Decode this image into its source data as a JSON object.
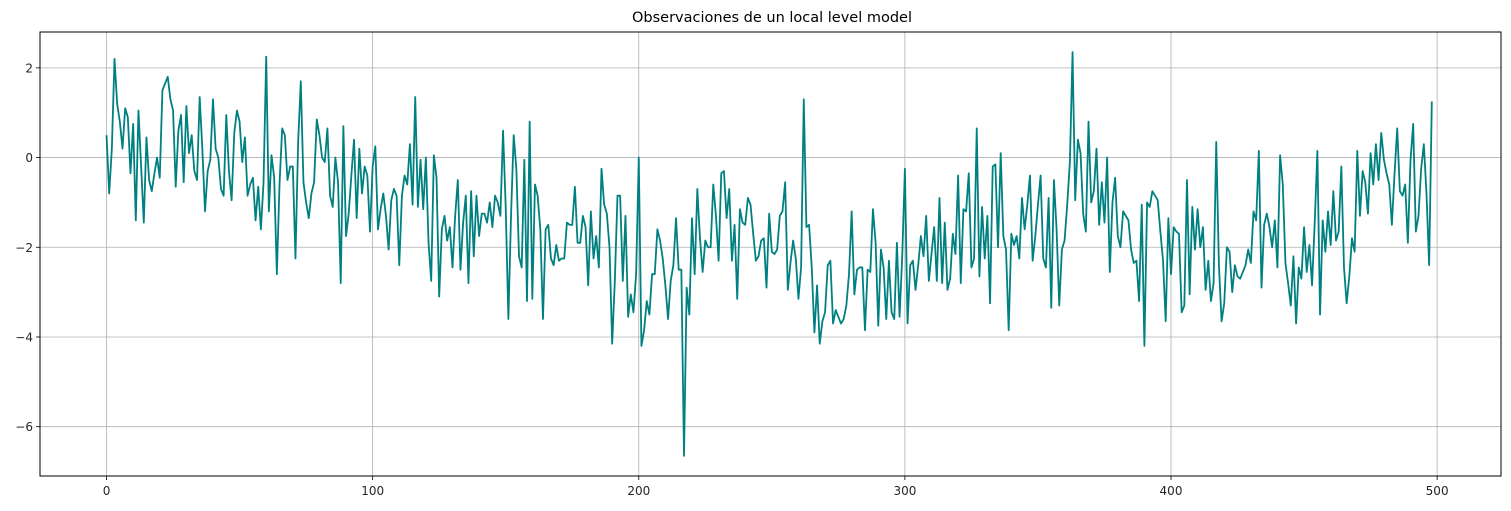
{
  "chart_data": {
    "type": "line",
    "title": "Observaciones de un local level model",
    "xlabel": "",
    "ylabel": "",
    "xlim": [
      -25,
      524
    ],
    "ylim": [
      -7.1,
      2.8
    ],
    "grid": true,
    "x_ticks": [
      0,
      100,
      200,
      300,
      400,
      500
    ],
    "y_ticks": [
      -6,
      -4,
      -2,
      0,
      2
    ],
    "colors": {
      "line": "#008080",
      "grid": "#b0b0b0",
      "axis": "#000000"
    },
    "series": [
      {
        "x_start": 0,
        "x_step": 1,
        "values": [
          0.5,
          -0.8,
          0.2,
          2.2,
          1.2,
          0.8,
          0.2,
          1.1,
          0.9,
          -0.35,
          0.75,
          -1.4,
          1.05,
          -0.2,
          -1.45,
          0.45,
          -0.5,
          -0.75,
          -0.35,
          0.0,
          -0.45,
          1.5,
          1.65,
          1.8,
          1.3,
          1.05,
          -0.65,
          0.6,
          0.95,
          -0.55,
          1.15,
          0.1,
          0.5,
          -0.3,
          -0.5,
          1.35,
          0.2,
          -1.2,
          -0.3,
          -0.05,
          1.3,
          0.2,
          0.0,
          -0.7,
          -0.85,
          0.95,
          -0.3,
          -0.95,
          0.55,
          1.05,
          0.8,
          -0.1,
          0.45,
          -0.85,
          -0.6,
          -0.45,
          -1.4,
          -0.65,
          -1.6,
          -0.55,
          2.25,
          -1.2,
          0.05,
          -0.45,
          -2.6,
          -0.6,
          0.65,
          0.5,
          -0.5,
          -0.2,
          -0.2,
          -2.25,
          0.35,
          1.7,
          -0.55,
          -1.0,
          -1.35,
          -0.8,
          -0.55,
          0.85,
          0.5,
          0.0,
          -0.1,
          0.65,
          -0.85,
          -1.1,
          0.0,
          -0.55,
          -2.8,
          0.7,
          -1.75,
          -1.25,
          -0.4,
          0.4,
          -1.35,
          0.2,
          -0.8,
          -0.2,
          -0.4,
          -1.65,
          -0.2,
          0.25,
          -1.6,
          -1.15,
          -0.8,
          -1.3,
          -2.05,
          -0.95,
          -0.7,
          -0.85,
          -2.4,
          -0.85,
          -0.4,
          -0.6,
          0.3,
          -1.05,
          1.35,
          -1.1,
          -0.05,
          -1.15,
          0.0,
          -1.9,
          -2.75,
          0.05,
          -0.45,
          -3.1,
          -1.6,
          -1.3,
          -1.85,
          -1.55,
          -2.45,
          -1.3,
          -0.5,
          -2.5,
          -1.45,
          -0.85,
          -2.8,
          -0.75,
          -2.2,
          -0.85,
          -1.75,
          -1.25,
          -1.25,
          -1.45,
          -1.0,
          -1.55,
          -0.85,
          -1.0,
          -1.3,
          0.6,
          -1.1,
          -3.6,
          -1.3,
          0.5,
          -0.25,
          -2.2,
          -2.45,
          -0.05,
          -3.2,
          0.8,
          -3.15,
          -0.6,
          -0.85,
          -1.6,
          -3.6,
          -1.6,
          -1.5,
          -2.25,
          -2.4,
          -1.95,
          -2.3,
          -2.25,
          -2.25,
          -1.45,
          -1.5,
          -1.5,
          -0.65,
          -1.9,
          -1.9,
          -1.3,
          -1.55,
          -2.85,
          -1.2,
          -2.25,
          -1.75,
          -2.45,
          -0.25,
          -1.05,
          -1.25,
          -2.0,
          -4.15,
          -2.75,
          -0.85,
          -0.85,
          -2.75,
          -1.3,
          -3.55,
          -3.05,
          -3.45,
          -2.6,
          0.0,
          -4.2,
          -3.85,
          -3.2,
          -3.5,
          -2.6,
          -2.6,
          -1.6,
          -1.85,
          -2.25,
          -2.85,
          -3.6,
          -2.75,
          -2.4,
          -1.35,
          -2.5,
          -2.5,
          -6.65,
          -2.9,
          -3.5,
          -1.35,
          -2.6,
          -0.7,
          -1.8,
          -2.55,
          -1.85,
          -2.0,
          -2.0,
          -0.6,
          -1.3,
          -2.3,
          -0.35,
          -0.3,
          -1.35,
          -0.7,
          -2.3,
          -1.5,
          -3.15,
          -1.15,
          -1.45,
          -1.5,
          -0.9,
          -1.05,
          -1.7,
          -2.3,
          -2.2,
          -1.85,
          -1.8,
          -2.9,
          -1.25,
          -2.1,
          -2.15,
          -2.05,
          -1.3,
          -1.2,
          -0.55,
          -2.95,
          -2.35,
          -1.85,
          -2.25,
          -3.15,
          -2.45,
          1.3,
          -1.55,
          -1.5,
          -2.45,
          -3.9,
          -2.85,
          -4.15,
          -3.65,
          -3.45,
          -2.4,
          -2.3,
          -3.7,
          -3.4,
          -3.55,
          -3.7,
          -3.6,
          -3.3,
          -2.6,
          -1.2,
          -3.05,
          -2.5,
          -2.45,
          -2.45,
          -3.85,
          -2.5,
          -2.55,
          -1.15,
          -1.9,
          -3.75,
          -2.05,
          -2.45,
          -3.6,
          -2.3,
          -3.45,
          -3.6,
          -1.9,
          -3.55,
          -2.2,
          -0.25,
          -3.7,
          -2.4,
          -2.3,
          -2.95,
          -2.4,
          -1.75,
          -2.2,
          -1.3,
          -2.75,
          -2.15,
          -1.55,
          -2.75,
          -0.9,
          -2.8,
          -1.45,
          -2.95,
          -2.7,
          -1.7,
          -2.15,
          -0.4,
          -2.8,
          -1.15,
          -1.2,
          -0.35,
          -2.45,
          -2.25,
          0.65,
          -2.65,
          -1.1,
          -2.25,
          -1.3,
          -3.25,
          -0.2,
          -0.15,
          -2.0,
          0.1,
          -1.75,
          -2.05,
          -3.85,
          -1.7,
          -1.95,
          -1.75,
          -2.25,
          -0.9,
          -1.6,
          -1.05,
          -0.4,
          -2.3,
          -1.75,
          -1.05,
          -0.4,
          -2.25,
          -2.45,
          -0.9,
          -3.35,
          -0.5,
          -1.6,
          -3.3,
          -2.05,
          -1.85,
          -1.05,
          -0.1,
          2.35,
          -0.95,
          0.4,
          0.1,
          -1.25,
          -1.65,
          0.8,
          -1.0,
          -0.75,
          0.2,
          -1.5,
          -0.55,
          -1.45,
          0.0,
          -2.55,
          -1.0,
          -0.45,
          -1.75,
          -2.0,
          -1.2,
          -1.3,
          -1.4,
          -2.05,
          -2.35,
          -2.3,
          -3.2,
          -1.05,
          -4.2,
          -1.0,
          -1.1,
          -0.75,
          -0.85,
          -0.95,
          -1.65,
          -2.3,
          -3.65,
          -1.35,
          -2.6,
          -1.55,
          -1.65,
          -1.7,
          -3.45,
          -3.3,
          -0.5,
          -3.05,
          -1.1,
          -2.05,
          -1.15,
          -2.0,
          -1.55,
          -2.95,
          -2.3,
          -3.2,
          -2.8,
          0.35,
          -2.4,
          -3.65,
          -3.25,
          -2.0,
          -2.1,
          -3.0,
          -2.4,
          -2.65,
          -2.7,
          -2.55,
          -2.4,
          -2.05,
          -2.35,
          -1.2,
          -1.4,
          0.15,
          -2.9,
          -1.5,
          -1.25,
          -1.55,
          -2.0,
          -1.4,
          -2.45,
          0.05,
          -0.6,
          -2.35,
          -2.8,
          -3.3,
          -2.2,
          -3.7,
          -2.45,
          -2.7,
          -1.55,
          -2.55,
          -1.95,
          -2.85,
          -1.45,
          0.15,
          -3.5,
          -1.4,
          -2.1,
          -1.2,
          -1.95,
          -0.75,
          -1.85,
          -1.65,
          -0.2,
          -2.45,
          -3.25,
          -2.65,
          -1.8,
          -2.1,
          0.15,
          -1.3,
          -0.3,
          -0.55,
          -1.25,
          0.1,
          -0.6,
          0.3,
          -0.5,
          0.55,
          -0.05,
          -0.35,
          -0.6,
          -1.5,
          -0.35,
          0.65,
          -0.75,
          -0.85,
          -0.6,
          -1.9,
          -0.05,
          0.75,
          -1.65,
          -1.3,
          -0.25,
          0.3,
          -0.8,
          -2.4,
          1.25
        ]
      }
    ]
  }
}
